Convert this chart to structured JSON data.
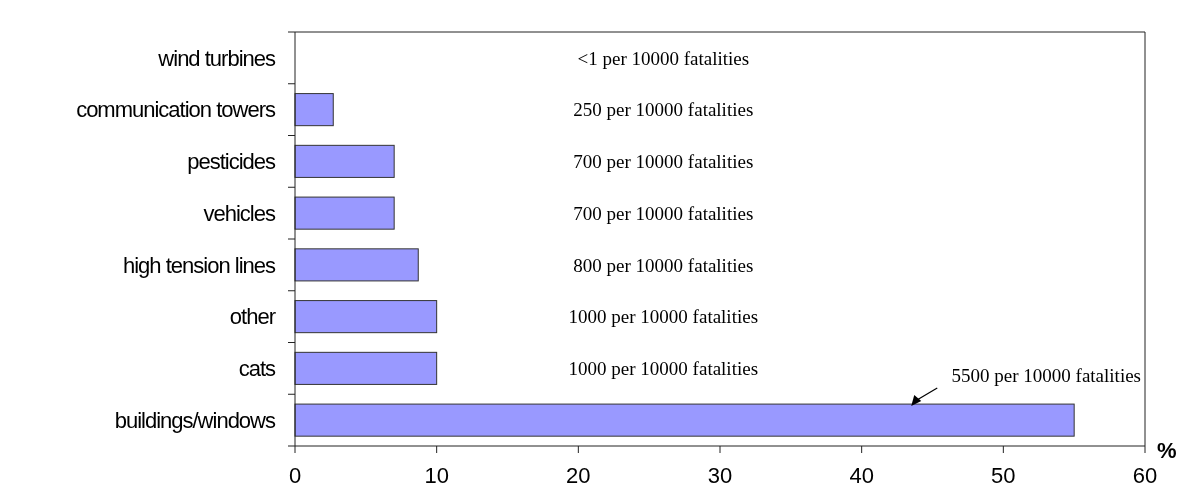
{
  "chart_data": {
    "type": "bar",
    "orientation": "horizontal",
    "categories": [
      "wind turbines",
      "communication towers",
      "pesticides",
      "vehicles",
      "high tension lines",
      "other",
      "cats",
      "buildings/windows"
    ],
    "values": [
      0,
      2.7,
      7,
      7,
      8.7,
      10,
      10,
      55
    ],
    "color": "#9999ff",
    "xlim": [
      0,
      60
    ],
    "xticks": [
      0,
      10,
      20,
      30,
      40,
      50,
      60
    ],
    "xlabel": "%",
    "grid": false,
    "annotations": [
      "<1 per 10000 fatalities",
      "250 per 10000 fatalities",
      "700 per 10000 fatalities",
      "700 per 10000 fatalities",
      "800 per 10000 fatalities",
      "1000 per 10000 fatalities",
      "1000 per 10000 fatalities",
      "5500 per 10000 fatalities"
    ]
  }
}
